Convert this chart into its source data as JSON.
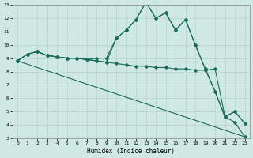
{
  "xlabel": "Humidex (Indice chaleur)",
  "xlim": [
    -0.5,
    23.5
  ],
  "ylim": [
    3,
    13
  ],
  "xticks": [
    0,
    1,
    2,
    3,
    4,
    5,
    6,
    7,
    8,
    9,
    10,
    11,
    12,
    13,
    14,
    15,
    16,
    17,
    18,
    19,
    20,
    21,
    22,
    23
  ],
  "yticks": [
    3,
    4,
    5,
    6,
    7,
    8,
    9,
    10,
    11,
    12,
    13
  ],
  "bg_color": "#cfe8e3",
  "line_color": "#1a6b5a",
  "grid_color": "#afd0cb",
  "line1_x": [
    0,
    1,
    2,
    3,
    4,
    5,
    6,
    7,
    8,
    9,
    10,
    11,
    12,
    13,
    14,
    15,
    16,
    17,
    18,
    19,
    20,
    21,
    22,
    23
  ],
  "line1_y": [
    8.8,
    9.3,
    9.5,
    9.2,
    9.1,
    9.0,
    9.0,
    8.9,
    9.0,
    9.0,
    10.5,
    11.1,
    11.9,
    13.2,
    12.0,
    12.4,
    11.1,
    11.9,
    10.0,
    8.2,
    6.5,
    4.6,
    5.0,
    4.1
  ],
  "line2_x": [
    0,
    1,
    2,
    3,
    4,
    5,
    6,
    7,
    8,
    9,
    10,
    11,
    12,
    13,
    14,
    15,
    16,
    17,
    18,
    19,
    20,
    21,
    22,
    23
  ],
  "line2_y": [
    8.8,
    9.3,
    9.5,
    9.2,
    9.1,
    9.0,
    9.0,
    8.9,
    8.8,
    8.7,
    8.6,
    8.5,
    8.4,
    8.4,
    8.3,
    8.3,
    8.2,
    8.2,
    8.1,
    8.1,
    8.2,
    4.6,
    4.2,
    3.1
  ],
  "line3_x": [
    0,
    23
  ],
  "line3_y": [
    8.8,
    3.1
  ],
  "line4_x": [
    0,
    1,
    2,
    3,
    4,
    5,
    6,
    7,
    8,
    9,
    10,
    11,
    12,
    13,
    14,
    15,
    16,
    17,
    18,
    19,
    20,
    21,
    22,
    23
  ],
  "line4_y": [
    8.8,
    9.3,
    9.5,
    9.2,
    9.1,
    9.0,
    9.0,
    8.9,
    8.8,
    8.7,
    10.5,
    11.1,
    11.9,
    13.2,
    12.0,
    12.4,
    11.1,
    11.9,
    10.0,
    8.2,
    6.5,
    4.6,
    5.0,
    4.1
  ]
}
